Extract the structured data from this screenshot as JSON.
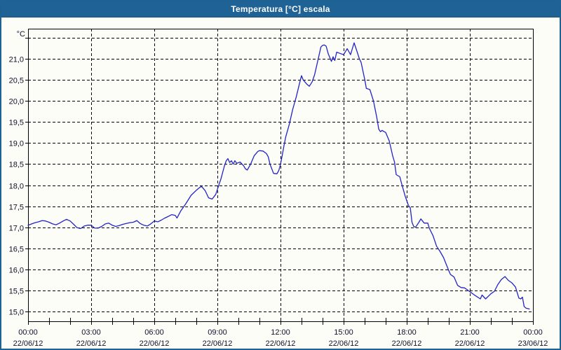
{
  "window": {
    "title": "Temperatura [°C] escala"
  },
  "colors": {
    "frame": "#1e6293",
    "header_bg": "#1f6396",
    "header_text": "#ffffff",
    "background": "#fcfdf7",
    "grid": "#000000",
    "label_text": "#10102c",
    "line": "#2323c8"
  },
  "chart_data": {
    "type": "line",
    "title": "Temperatura [°C] escala",
    "ylabel": "°C",
    "xlabel": "",
    "grid": "dashed",
    "legend_position": "none",
    "ylim": [
      15.0,
      21.5
    ],
    "xlim_hours": [
      0,
      24
    ],
    "y_ticks": [
      {
        "value": 21.5,
        "label": ""
      },
      {
        "value": 21.0,
        "label": "21,0"
      },
      {
        "value": 20.5,
        "label": "20,5"
      },
      {
        "value": 20.0,
        "label": "20,0"
      },
      {
        "value": 19.5,
        "label": "19,5"
      },
      {
        "value": 19.0,
        "label": "19,0"
      },
      {
        "value": 18.5,
        "label": "18,5"
      },
      {
        "value": 18.0,
        "label": "18,0"
      },
      {
        "value": 17.5,
        "label": "17,5"
      },
      {
        "value": 17.0,
        "label": "17,0"
      },
      {
        "value": 16.5,
        "label": "16,5"
      },
      {
        "value": 16.0,
        "label": "16,0"
      },
      {
        "value": 15.5,
        "label": "15,5"
      },
      {
        "value": 15.0,
        "label": "15,0"
      }
    ],
    "x_ticks": [
      {
        "hour": 0,
        "time": "00:00",
        "date": "22/06/12"
      },
      {
        "hour": 3,
        "time": "03:00",
        "date": "22/06/12"
      },
      {
        "hour": 6,
        "time": "06:00",
        "date": "22/06/12"
      },
      {
        "hour": 9,
        "time": "09:00",
        "date": "22/06/12"
      },
      {
        "hour": 12,
        "time": "12:00",
        "date": "22/06/12"
      },
      {
        "hour": 15,
        "time": "15:00",
        "date": "22/06/12"
      },
      {
        "hour": 18,
        "time": "18:00",
        "date": "22/06/12"
      },
      {
        "hour": 21,
        "time": "21:00",
        "date": "22/06/12"
      },
      {
        "hour": 24,
        "time": "00:00",
        "date": "23/06/12"
      }
    ],
    "minor_x_tick_every_hours": 1,
    "series": [
      {
        "name": "Temperatura",
        "color": "#2323c8",
        "x_unit": "hours",
        "points": [
          [
            0,
            17.05
          ],
          [
            0.17,
            17.08
          ],
          [
            0.33,
            17.11
          ],
          [
            0.5,
            17.13
          ],
          [
            0.67,
            17.16
          ],
          [
            0.83,
            17.15
          ],
          [
            1,
            17.12
          ],
          [
            1.17,
            17.08
          ],
          [
            1.33,
            17.06
          ],
          [
            1.5,
            17.1
          ],
          [
            1.67,
            17.15
          ],
          [
            1.83,
            17.19
          ],
          [
            2,
            17.15
          ],
          [
            2.17,
            17.07
          ],
          [
            2.33,
            16.99
          ],
          [
            2.5,
            16.97
          ],
          [
            2.67,
            17.03
          ],
          [
            2.83,
            17.05
          ],
          [
            3,
            17.05
          ],
          [
            3.17,
            16.98
          ],
          [
            3.33,
            16.98
          ],
          [
            3.5,
            17.02
          ],
          [
            3.67,
            17.08
          ],
          [
            3.83,
            17.1
          ],
          [
            4,
            17.05
          ],
          [
            4.17,
            17.02
          ],
          [
            4.33,
            17.04
          ],
          [
            4.5,
            17.07
          ],
          [
            4.67,
            17.09
          ],
          [
            4.83,
            17.11
          ],
          [
            5,
            17.12
          ],
          [
            5.17,
            17.16
          ],
          [
            5.33,
            17.09
          ],
          [
            5.5,
            17.05
          ],
          [
            5.67,
            17.03
          ],
          [
            5.83,
            17.08
          ],
          [
            6,
            17.15
          ],
          [
            6.17,
            17.13
          ],
          [
            6.33,
            17.17
          ],
          [
            6.5,
            17.22
          ],
          [
            6.67,
            17.26
          ],
          [
            6.83,
            17.3
          ],
          [
            7,
            17.28
          ],
          [
            7.08,
            17.22
          ],
          [
            7.25,
            17.38
          ],
          [
            7.5,
            17.56
          ],
          [
            7.75,
            17.76
          ],
          [
            8,
            17.88
          ],
          [
            8.17,
            17.95
          ],
          [
            8.25,
            17.97
          ],
          [
            8.42,
            17.87
          ],
          [
            8.58,
            17.7
          ],
          [
            8.75,
            17.67
          ],
          [
            8.92,
            17.78
          ],
          [
            9.08,
            18.02
          ],
          [
            9.17,
            18.15
          ],
          [
            9.33,
            18.45
          ],
          [
            9.42,
            18.58
          ],
          [
            9.5,
            18.63
          ],
          [
            9.58,
            18.54
          ],
          [
            9.67,
            18.58
          ],
          [
            9.75,
            18.5
          ],
          [
            9.83,
            18.58
          ],
          [
            9.92,
            18.52
          ],
          [
            10.08,
            18.55
          ],
          [
            10.25,
            18.46
          ],
          [
            10.33,
            18.39
          ],
          [
            10.42,
            18.36
          ],
          [
            10.58,
            18.5
          ],
          [
            10.75,
            18.7
          ],
          [
            10.92,
            18.8
          ],
          [
            11,
            18.82
          ],
          [
            11.17,
            18.81
          ],
          [
            11.33,
            18.75
          ],
          [
            11.42,
            18.67
          ],
          [
            11.5,
            18.5
          ],
          [
            11.67,
            18.28
          ],
          [
            11.83,
            18.27
          ],
          [
            11.92,
            18.35
          ],
          [
            12,
            18.5
          ],
          [
            12.08,
            18.7
          ],
          [
            12.17,
            18.95
          ],
          [
            12.25,
            19.15
          ],
          [
            12.42,
            19.45
          ],
          [
            12.58,
            19.8
          ],
          [
            12.75,
            20.1
          ],
          [
            12.92,
            20.45
          ],
          [
            13,
            20.6
          ],
          [
            13.08,
            20.5
          ],
          [
            13.25,
            20.4
          ],
          [
            13.37,
            20.35
          ],
          [
            13.5,
            20.45
          ],
          [
            13.62,
            20.62
          ],
          [
            13.77,
            20.95
          ],
          [
            13.92,
            21.28
          ],
          [
            14,
            21.32
          ],
          [
            14.08,
            21.33
          ],
          [
            14.17,
            21.3
          ],
          [
            14.27,
            21.12
          ],
          [
            14.42,
            20.94
          ],
          [
            14.5,
            21.05
          ],
          [
            14.58,
            20.96
          ],
          [
            14.67,
            21.16
          ],
          [
            14.83,
            21.13
          ],
          [
            15,
            21.1
          ],
          [
            15.17,
            21.24
          ],
          [
            15.33,
            21.1
          ],
          [
            15.42,
            21.25
          ],
          [
            15.5,
            21.38
          ],
          [
            15.62,
            21.2
          ],
          [
            15.75,
            21.0
          ],
          [
            15.83,
            20.92
          ],
          [
            16,
            20.52
          ],
          [
            16.08,
            20.3
          ],
          [
            16.25,
            20.27
          ],
          [
            16.42,
            20.0
          ],
          [
            16.58,
            19.6
          ],
          [
            16.67,
            19.33
          ],
          [
            16.75,
            19.27
          ],
          [
            16.83,
            19.3
          ],
          [
            17,
            19.25
          ],
          [
            17.17,
            19.05
          ],
          [
            17.33,
            18.7
          ],
          [
            17.42,
            18.55
          ],
          [
            17.5,
            18.25
          ],
          [
            17.67,
            18.2
          ],
          [
            17.75,
            18.05
          ],
          [
            17.92,
            17.75
          ],
          [
            18.08,
            17.52
          ],
          [
            18.17,
            17.46
          ],
          [
            18.25,
            17.12
          ],
          [
            18.33,
            17.02
          ],
          [
            18.42,
            17.0
          ],
          [
            18.58,
            17.12
          ],
          [
            18.67,
            17.2
          ],
          [
            18.83,
            17.1
          ],
          [
            19,
            17.1
          ],
          [
            19.08,
            16.97
          ],
          [
            19.25,
            16.8
          ],
          [
            19.42,
            16.55
          ],
          [
            19.58,
            16.43
          ],
          [
            19.75,
            16.28
          ],
          [
            19.83,
            16.18
          ],
          [
            20,
            15.97
          ],
          [
            20.08,
            15.88
          ],
          [
            20.25,
            15.82
          ],
          [
            20.42,
            15.62
          ],
          [
            20.58,
            15.57
          ],
          [
            20.75,
            15.56
          ],
          [
            20.92,
            15.5
          ],
          [
            21,
            15.47
          ],
          [
            21.25,
            15.38
          ],
          [
            21.5,
            15.3
          ],
          [
            21.58,
            15.39
          ],
          [
            21.75,
            15.3
          ],
          [
            22,
            15.42
          ],
          [
            22.17,
            15.48
          ],
          [
            22.33,
            15.64
          ],
          [
            22.5,
            15.76
          ],
          [
            22.67,
            15.83
          ],
          [
            22.83,
            15.74
          ],
          [
            23,
            15.68
          ],
          [
            23.17,
            15.58
          ],
          [
            23.33,
            15.32
          ],
          [
            23.42,
            15.3
          ],
          [
            23.5,
            15.34
          ],
          [
            23.58,
            15.12
          ],
          [
            23.67,
            15.08
          ],
          [
            23.83,
            15.06
          ]
        ]
      }
    ]
  }
}
